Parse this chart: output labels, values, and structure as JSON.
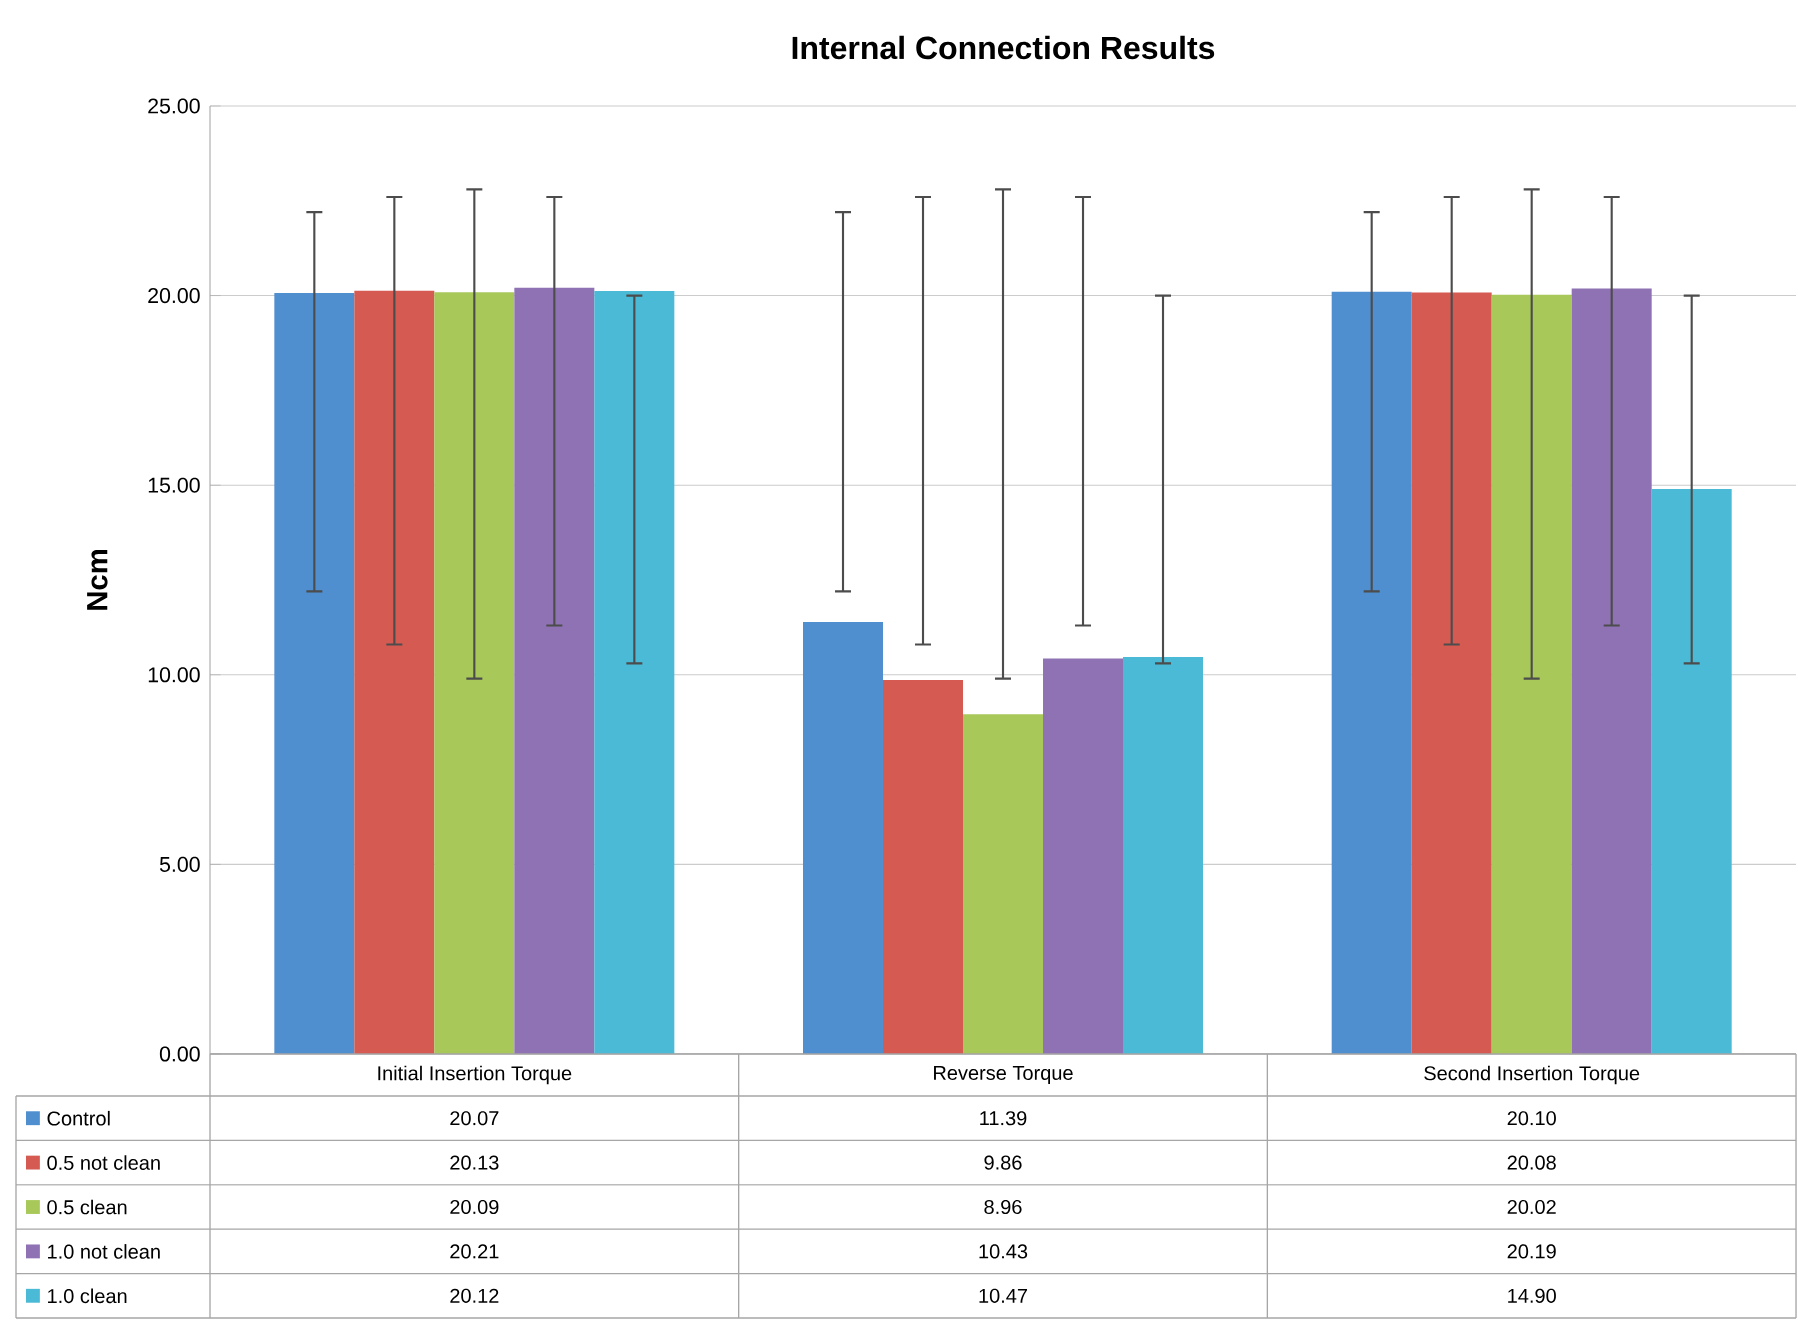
{
  "chart_data": {
    "type": "bar",
    "title": "Internal Connection Results",
    "ylabel": "Ncm",
    "categories": [
      "Initial Insertion Torque",
      "Reverse Torque",
      "Second Insertion Torque"
    ],
    "ylim": [
      0,
      25
    ],
    "yticks": [
      {
        "value": 0,
        "label": "0.00"
      },
      {
        "value": 5,
        "label": "5.00"
      },
      {
        "value": 10,
        "label": "10.00"
      },
      {
        "value": 15,
        "label": "15.00"
      },
      {
        "value": 20,
        "label": "20.00"
      },
      {
        "value": 25,
        "label": "25.00"
      }
    ],
    "grid": "y",
    "legend": "bottom",
    "series": [
      {
        "name": "Control",
        "color": "#4f8fcf",
        "values": [
          20.07,
          11.39,
          20.1
        ],
        "value_labels": [
          "20.07",
          "11.39",
          "20.10"
        ],
        "errors": [
          [
            12.2,
            22.2
          ],
          [
            12.2,
            22.2
          ],
          [
            12.2,
            22.2
          ]
        ]
      },
      {
        "name": "0.5 not clean",
        "color": "#d45a52",
        "values": [
          20.13,
          9.86,
          20.08
        ],
        "value_labels": [
          "20.13",
          "9.86",
          "20.08"
        ],
        "errors": [
          [
            10.8,
            22.6
          ],
          [
            10.8,
            22.6
          ],
          [
            10.8,
            22.6
          ]
        ]
      },
      {
        "name": "0.5 clean",
        "color": "#a8c85a",
        "values": [
          20.09,
          8.96,
          20.02
        ],
        "value_labels": [
          "20.09",
          "8.96",
          "20.02"
        ],
        "errors": [
          [
            9.9,
            22.8
          ],
          [
            9.9,
            22.8
          ],
          [
            9.9,
            22.8
          ]
        ]
      },
      {
        "name": "1.0 not clean",
        "color": "#8e72b4",
        "values": [
          20.21,
          10.43,
          20.19
        ],
        "value_labels": [
          "20.21",
          "10.43",
          "20.19"
        ],
        "errors": [
          [
            11.3,
            22.6
          ],
          [
            11.3,
            22.6
          ],
          [
            11.3,
            22.6
          ]
        ]
      },
      {
        "name": "1.0 clean",
        "color": "#4bbad6",
        "values": [
          20.12,
          10.47,
          14.9
        ],
        "value_labels": [
          "20.12",
          "10.47",
          "14.90"
        ],
        "errors": [
          [
            10.3,
            20.0
          ],
          [
            10.3,
            20.0
          ],
          [
            10.3,
            20.0
          ]
        ]
      }
    ]
  }
}
